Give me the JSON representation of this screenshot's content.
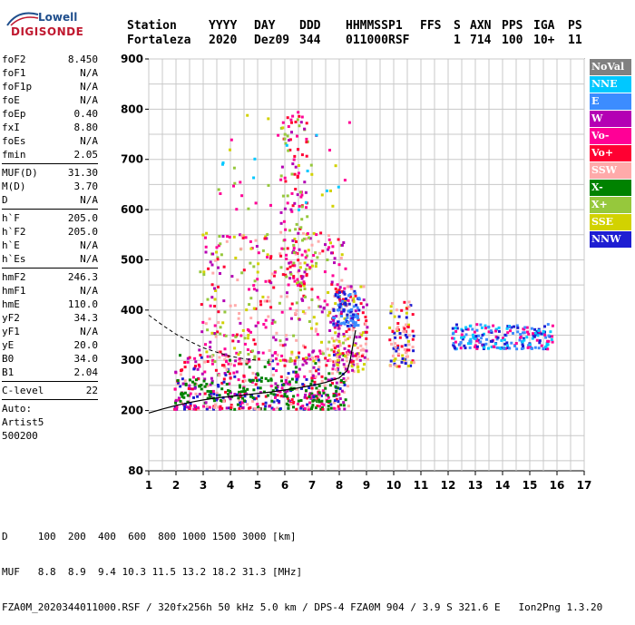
{
  "logo": {
    "top": "Lowell",
    "bottom": "DIGISONDE"
  },
  "header": {
    "labels": [
      "Station",
      "YYYY",
      "DAY",
      "DDD",
      "HHMMSS",
      "P1",
      "FFS",
      "S",
      "AXN",
      "PPS",
      "IGA",
      "PS"
    ],
    "values": [
      "Fortaleza",
      "2020",
      "Dez09",
      "344",
      "011000",
      "RSF",
      "1",
      "714",
      "100",
      "10+",
      "11"
    ]
  },
  "params": [
    [
      {
        "label": "foF2",
        "value": "8.450"
      },
      {
        "label": "foF1",
        "value": "N/A"
      },
      {
        "label": "foF1p",
        "value": "N/A"
      },
      {
        "label": "foE",
        "value": "N/A"
      },
      {
        "label": "foEp",
        "value": "0.40"
      },
      {
        "label": "fxI",
        "value": "8.80"
      },
      {
        "label": "foEs",
        "value": "N/A"
      },
      {
        "label": "fmin",
        "value": "2.05"
      }
    ],
    [
      {
        "label": "MUF(D)",
        "value": "31.30"
      },
      {
        "label": "M(D)",
        "value": "3.70"
      },
      {
        "label": "D",
        "value": "N/A"
      }
    ],
    [
      {
        "label": "h`F",
        "value": "205.0"
      },
      {
        "label": "h`F2",
        "value": "205.0"
      },
      {
        "label": "h`E",
        "value": "N/A"
      },
      {
        "label": "h`Es",
        "value": "N/A"
      }
    ],
    [
      {
        "label": "hmF2",
        "value": "246.3"
      },
      {
        "label": "hmF1",
        "value": "N/A"
      },
      {
        "label": "hmE",
        "value": "110.0"
      },
      {
        "label": "yF2",
        "value": "34.3"
      },
      {
        "label": "yF1",
        "value": "N/A"
      },
      {
        "label": "yE",
        "value": "20.0"
      },
      {
        "label": "B0",
        "value": "34.0"
      },
      {
        "label": "B1",
        "value": "2.04"
      }
    ],
    [
      {
        "label": "C-level",
        "value": "22"
      }
    ]
  ],
  "auto": [
    "Auto:",
    "Artist5",
    "500200"
  ],
  "legend": [
    {
      "label": "NoVal",
      "color": "#808080"
    },
    {
      "label": "NNE",
      "color": "#00c8ff"
    },
    {
      "label": "E",
      "color": "#3c8cff"
    },
    {
      "label": "W",
      "color": "#b400b4"
    },
    {
      "label": "Vo-",
      "color": "#ff0096"
    },
    {
      "label": "Vo+",
      "color": "#ff0032"
    },
    {
      "label": "SSW",
      "color": "#ffaaaa"
    },
    {
      "label": "X-",
      "color": "#008200"
    },
    {
      "label": "X+",
      "color": "#96c83c"
    },
    {
      "label": "SSE",
      "color": "#d2d200"
    },
    {
      "label": "NNW",
      "color": "#1e1ed2"
    }
  ],
  "footer": {
    "d_row": "D     100  200  400  600  800 1000 1500 3000 [km]",
    "muf_row": "MUF   8.8  8.9  9.4 10.3 11.5 13.2 18.2 31.3 [MHz]",
    "file_row": "FZA0M_2020344011000.RSF / 320fx256h 50 kHz 5.0 km / DPS-4 FZA0M 904 / 3.9 S 321.6 E   Ion2Png 1.3.20"
  },
  "chart_data": {
    "type": "scatter",
    "title": "",
    "xlabel": "",
    "ylabel": "",
    "xlim": [
      1,
      17
    ],
    "ylim": [
      80,
      900
    ],
    "x_ticks": [
      1,
      2,
      3,
      4,
      5,
      6,
      7,
      8,
      9,
      10,
      11,
      12,
      13,
      14,
      15,
      16,
      17
    ],
    "y_ticks": [
      80,
      200,
      300,
      400,
      500,
      600,
      700,
      800,
      900
    ],
    "grid": true,
    "legend_position": "right",
    "echo_clusters": [
      {
        "x_range": [
          1.9,
          8.3
        ],
        "y_range": [
          205,
          320
        ],
        "colors": [
          "#ff0032",
          "#ff0096",
          "#b400b4",
          "#008200",
          "#ffaaaa",
          "#1e1ed2"
        ],
        "count": 520
      },
      {
        "x_range": [
          2.8,
          8.3
        ],
        "y_range": [
          300,
          560
        ],
        "colors": [
          "#ff0096",
          "#ff0032",
          "#b400b4",
          "#ffaaaa",
          "#d2d200",
          "#96c83c"
        ],
        "count": 380
      },
      {
        "x_range": [
          5.8,
          6.8
        ],
        "y_range": [
          450,
          800
        ],
        "colors": [
          "#ff0096",
          "#b400b4",
          "#ff0032",
          "#96c83c"
        ],
        "count": 120
      },
      {
        "x_range": [
          7.7,
          9.0
        ],
        "y_range": [
          280,
          450
        ],
        "colors": [
          "#ffaaaa",
          "#d2d200",
          "#ff0032",
          "#b400b4"
        ],
        "count": 150
      },
      {
        "x_range": [
          7.7,
          8.7
        ],
        "y_range": [
          370,
          440
        ],
        "colors": [
          "#1e1ed2",
          "#3c8cff"
        ],
        "count": 80
      },
      {
        "x_range": [
          9.8,
          10.7
        ],
        "y_range": [
          290,
          420
        ],
        "colors": [
          "#ffaaaa",
          "#d2d200",
          "#1e1ed2",
          "#ff0032"
        ],
        "count": 90
      },
      {
        "x_range": [
          12.1,
          15.8
        ],
        "y_range": [
          325,
          375
        ],
        "colors": [
          "#1e1ed2",
          "#3c8cff",
          "#00c8ff",
          "#ff0096"
        ],
        "count": 210
      },
      {
        "x_range": [
          2.0,
          8.2
        ],
        "y_range": [
          220,
          265
        ],
        "colors": [
          "#008200"
        ],
        "count": 90
      },
      {
        "x_range": [
          3.5,
          8.4
        ],
        "y_range": [
          600,
          800
        ],
        "colors": [
          "#d2d200",
          "#96c83c",
          "#ff0096",
          "#00c8ff"
        ],
        "count": 45
      }
    ],
    "scaled_trace": {
      "x": [
        1.0,
        1.5,
        2.0,
        2.5,
        3.0,
        3.5,
        4.0,
        4.5,
        5.0,
        5.5,
        6.0,
        6.5,
        7.0,
        7.5,
        8.0,
        8.3,
        8.4,
        8.5,
        8.6
      ],
      "y": [
        195,
        203,
        210,
        216,
        221,
        225,
        228,
        231,
        234,
        237,
        241,
        245,
        250,
        256,
        265,
        280,
        300,
        330,
        360
      ]
    },
    "profile_curve": {
      "x": [
        1.0,
        1.5,
        2.0,
        2.5,
        3.0,
        3.5,
        4.0,
        4.5,
        5.0
      ],
      "y": [
        390,
        370,
        352,
        338,
        325,
        316,
        308,
        303,
        300
      ]
    }
  }
}
